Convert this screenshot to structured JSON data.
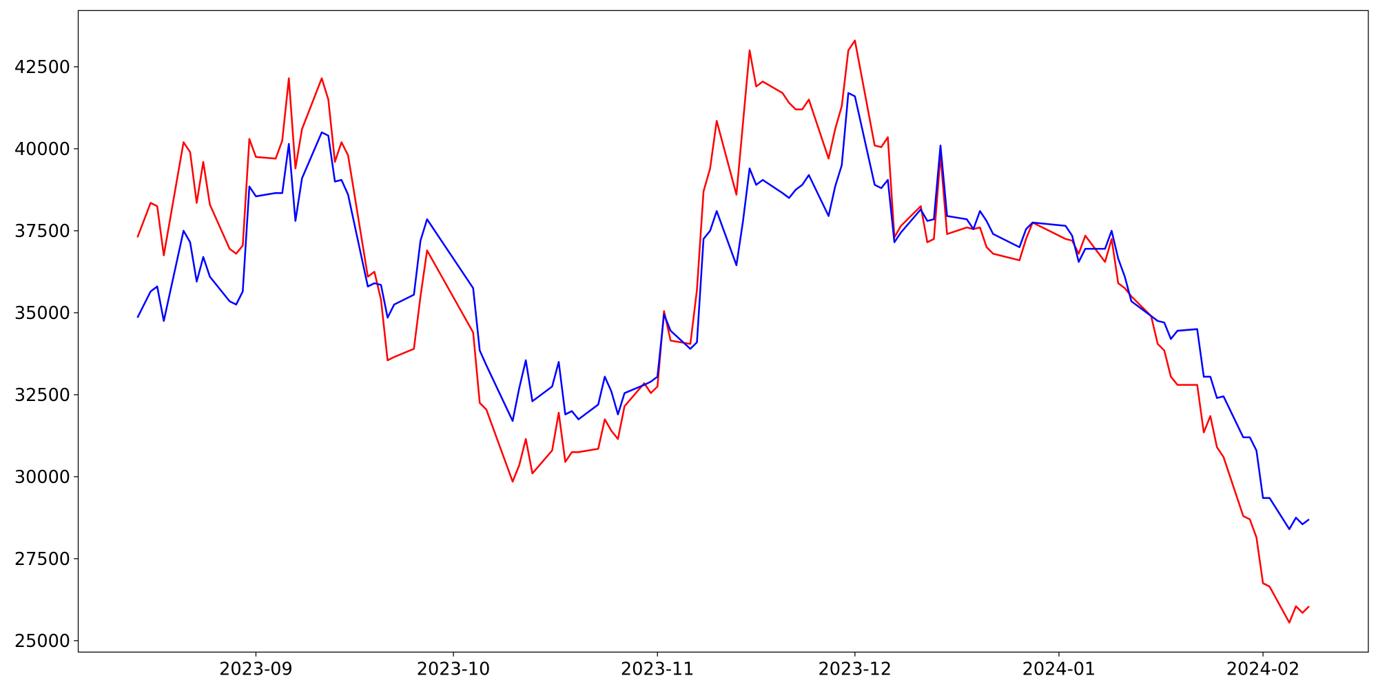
{
  "chart_data": {
    "type": "line",
    "x": [
      "2023-08-14",
      "2023-08-16",
      "2023-08-17",
      "2023-08-18",
      "2023-08-21",
      "2023-08-22",
      "2023-08-23",
      "2023-08-24",
      "2023-08-25",
      "2023-08-28",
      "2023-08-29",
      "2023-08-30",
      "2023-08-31",
      "2023-09-01",
      "2023-09-04",
      "2023-09-05",
      "2023-09-06",
      "2023-09-07",
      "2023-09-08",
      "2023-09-11",
      "2023-09-12",
      "2023-09-13",
      "2023-09-14",
      "2023-09-15",
      "2023-09-18",
      "2023-09-19",
      "2023-09-20",
      "2023-09-21",
      "2023-09-22",
      "2023-09-25",
      "2023-09-26",
      "2023-09-27",
      "2023-10-04",
      "2023-10-05",
      "2023-10-06",
      "2023-10-10",
      "2023-10-11",
      "2023-10-12",
      "2023-10-13",
      "2023-10-16",
      "2023-10-17",
      "2023-10-18",
      "2023-10-19",
      "2023-10-20",
      "2023-10-23",
      "2023-10-24",
      "2023-10-25",
      "2023-10-26",
      "2023-10-27",
      "2023-10-30",
      "2023-10-31",
      "2023-11-01",
      "2023-11-02",
      "2023-11-03",
      "2023-11-06",
      "2023-11-07",
      "2023-11-08",
      "2023-11-09",
      "2023-11-10",
      "2023-11-13",
      "2023-11-14",
      "2023-11-15",
      "2023-11-16",
      "2023-11-17",
      "2023-11-20",
      "2023-11-21",
      "2023-11-22",
      "2023-11-23",
      "2023-11-24",
      "2023-11-27",
      "2023-11-28",
      "2023-11-29",
      "2023-11-30",
      "2023-12-01",
      "2023-12-04",
      "2023-12-05",
      "2023-12-06",
      "2023-12-07",
      "2023-12-08",
      "2023-12-11",
      "2023-12-12",
      "2023-12-13",
      "2023-12-14",
      "2023-12-15",
      "2023-12-18",
      "2023-12-19",
      "2023-12-20",
      "2023-12-21",
      "2023-12-22",
      "2023-12-26",
      "2023-12-27",
      "2023-12-28",
      "2024-01-02",
      "2024-01-03",
      "2024-01-04",
      "2024-01-05",
      "2024-01-08",
      "2024-01-09",
      "2024-01-10",
      "2024-01-11",
      "2024-01-12",
      "2024-01-15",
      "2024-01-16",
      "2024-01-17",
      "2024-01-18",
      "2024-01-19",
      "2024-01-22",
      "2024-01-23",
      "2024-01-24",
      "2024-01-25",
      "2024-01-26",
      "2024-01-29",
      "2024-01-30",
      "2024-01-31",
      "2024-02-01",
      "2024-02-02",
      "2024-02-05",
      "2024-02-06",
      "2024-02-07",
      "2024-02-08"
    ],
    "series": [
      {
        "color": "#ff0000",
        "values": [
          37300,
          38350,
          38250,
          36750,
          40200,
          39900,
          38350,
          39600,
          38300,
          36950,
          36800,
          37050,
          40300,
          39750,
          39700,
          40250,
          42150,
          39400,
          40600,
          42150,
          41500,
          39600,
          40200,
          39800,
          36100,
          36250,
          35400,
          33550,
          33650,
          33900,
          35500,
          36900,
          34400,
          32250,
          32050,
          29850,
          30350,
          31150,
          30100,
          30800,
          31950,
          30450,
          30750,
          30750,
          30850,
          31750,
          31400,
          31150,
          32150,
          32850,
          32550,
          32750,
          35050,
          34150,
          34050,
          35700,
          38700,
          39400,
          40850,
          38600,
          40800,
          43000,
          41900,
          42050,
          41700,
          41400,
          41200,
          41200,
          41500,
          39700,
          40600,
          41300,
          43000,
          43300,
          40100,
          40050,
          40350,
          37300,
          37650,
          38250,
          37150,
          37250,
          39800,
          37400,
          37600,
          37550,
          37600,
          37000,
          36800,
          36600,
          37250,
          37750,
          37250,
          37200,
          36800,
          37350,
          36550,
          37250,
          35900,
          35750,
          35500,
          34900,
          34050,
          33850,
          33050,
          32800,
          32800,
          31350,
          31850,
          30900,
          30600,
          28800,
          28700,
          28150,
          26750,
          26650,
          25550,
          26050,
          25850,
          26050
        ]
      },
      {
        "color": "#0000ff",
        "values": [
          34850,
          35650,
          35800,
          34750,
          37500,
          37150,
          35950,
          36700,
          36100,
          35350,
          35250,
          35650,
          38850,
          38550,
          38650,
          38650,
          40150,
          37800,
          39100,
          40500,
          40400,
          39000,
          39050,
          38600,
          35800,
          35900,
          35850,
          34850,
          35250,
          35550,
          37200,
          37850,
          35750,
          33850,
          33400,
          31700,
          32700,
          33550,
          32300,
          32750,
          33500,
          31900,
          32000,
          31750,
          32200,
          33050,
          32600,
          31900,
          32550,
          32800,
          32900,
          33050,
          34950,
          34450,
          33900,
          34100,
          37250,
          37500,
          38100,
          36450,
          37800,
          39400,
          38900,
          39050,
          38650,
          38500,
          38750,
          38900,
          39200,
          37950,
          38850,
          39500,
          41700,
          41600,
          38900,
          38800,
          39050,
          37150,
          37450,
          38150,
          37800,
          37850,
          40100,
          37950,
          37850,
          37550,
          38100,
          37800,
          37400,
          37000,
          37550,
          37750,
          37650,
          37350,
          36550,
          36950,
          36950,
          37500,
          36650,
          36100,
          35350,
          34900,
          34750,
          34700,
          34200,
          34450,
          34500,
          33050,
          33050,
          32400,
          32450,
          31200,
          31200,
          30800,
          29350,
          29350,
          28400,
          28750,
          28550,
          28700
        ]
      }
    ],
    "xlim": [
      "2023-08-05",
      "2024-02-17"
    ],
    "xticks": [
      {
        "value": "2023-09-01",
        "label": "2023-09"
      },
      {
        "value": "2023-10-01",
        "label": "2023-10"
      },
      {
        "value": "2023-11-01",
        "label": "2023-11"
      },
      {
        "value": "2023-12-01",
        "label": "2023-12"
      },
      {
        "value": "2024-01-01",
        "label": "2024-01"
      },
      {
        "value": "2024-02-01",
        "label": "2024-02"
      }
    ],
    "ylim": [
      24652,
      44215
    ],
    "yticks": [
      25000,
      27500,
      30000,
      32500,
      35000,
      37500,
      40000,
      42500
    ]
  }
}
